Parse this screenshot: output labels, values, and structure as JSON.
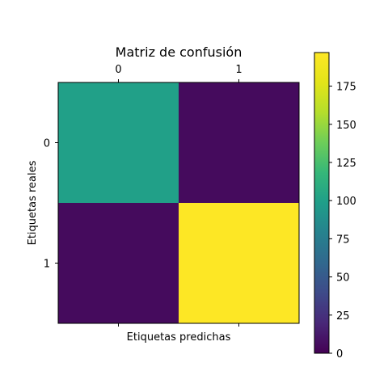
{
  "chart_data": {
    "type": "heatmap",
    "title": "Matriz de confusión",
    "xlabel": "Etiquetas predichas",
    "ylabel": "Etiquetas reales",
    "x_categories": [
      "0",
      "1"
    ],
    "y_categories": [
      "0",
      "1"
    ],
    "values": [
      [
        100,
        5
      ],
      [
        5,
        197
      ]
    ],
    "colorbar": {
      "min": 0,
      "max": 197,
      "ticks": [
        0,
        25,
        50,
        75,
        100,
        125,
        150,
        175
      ]
    },
    "colormap": "viridis",
    "x_ticks_position": "top"
  }
}
